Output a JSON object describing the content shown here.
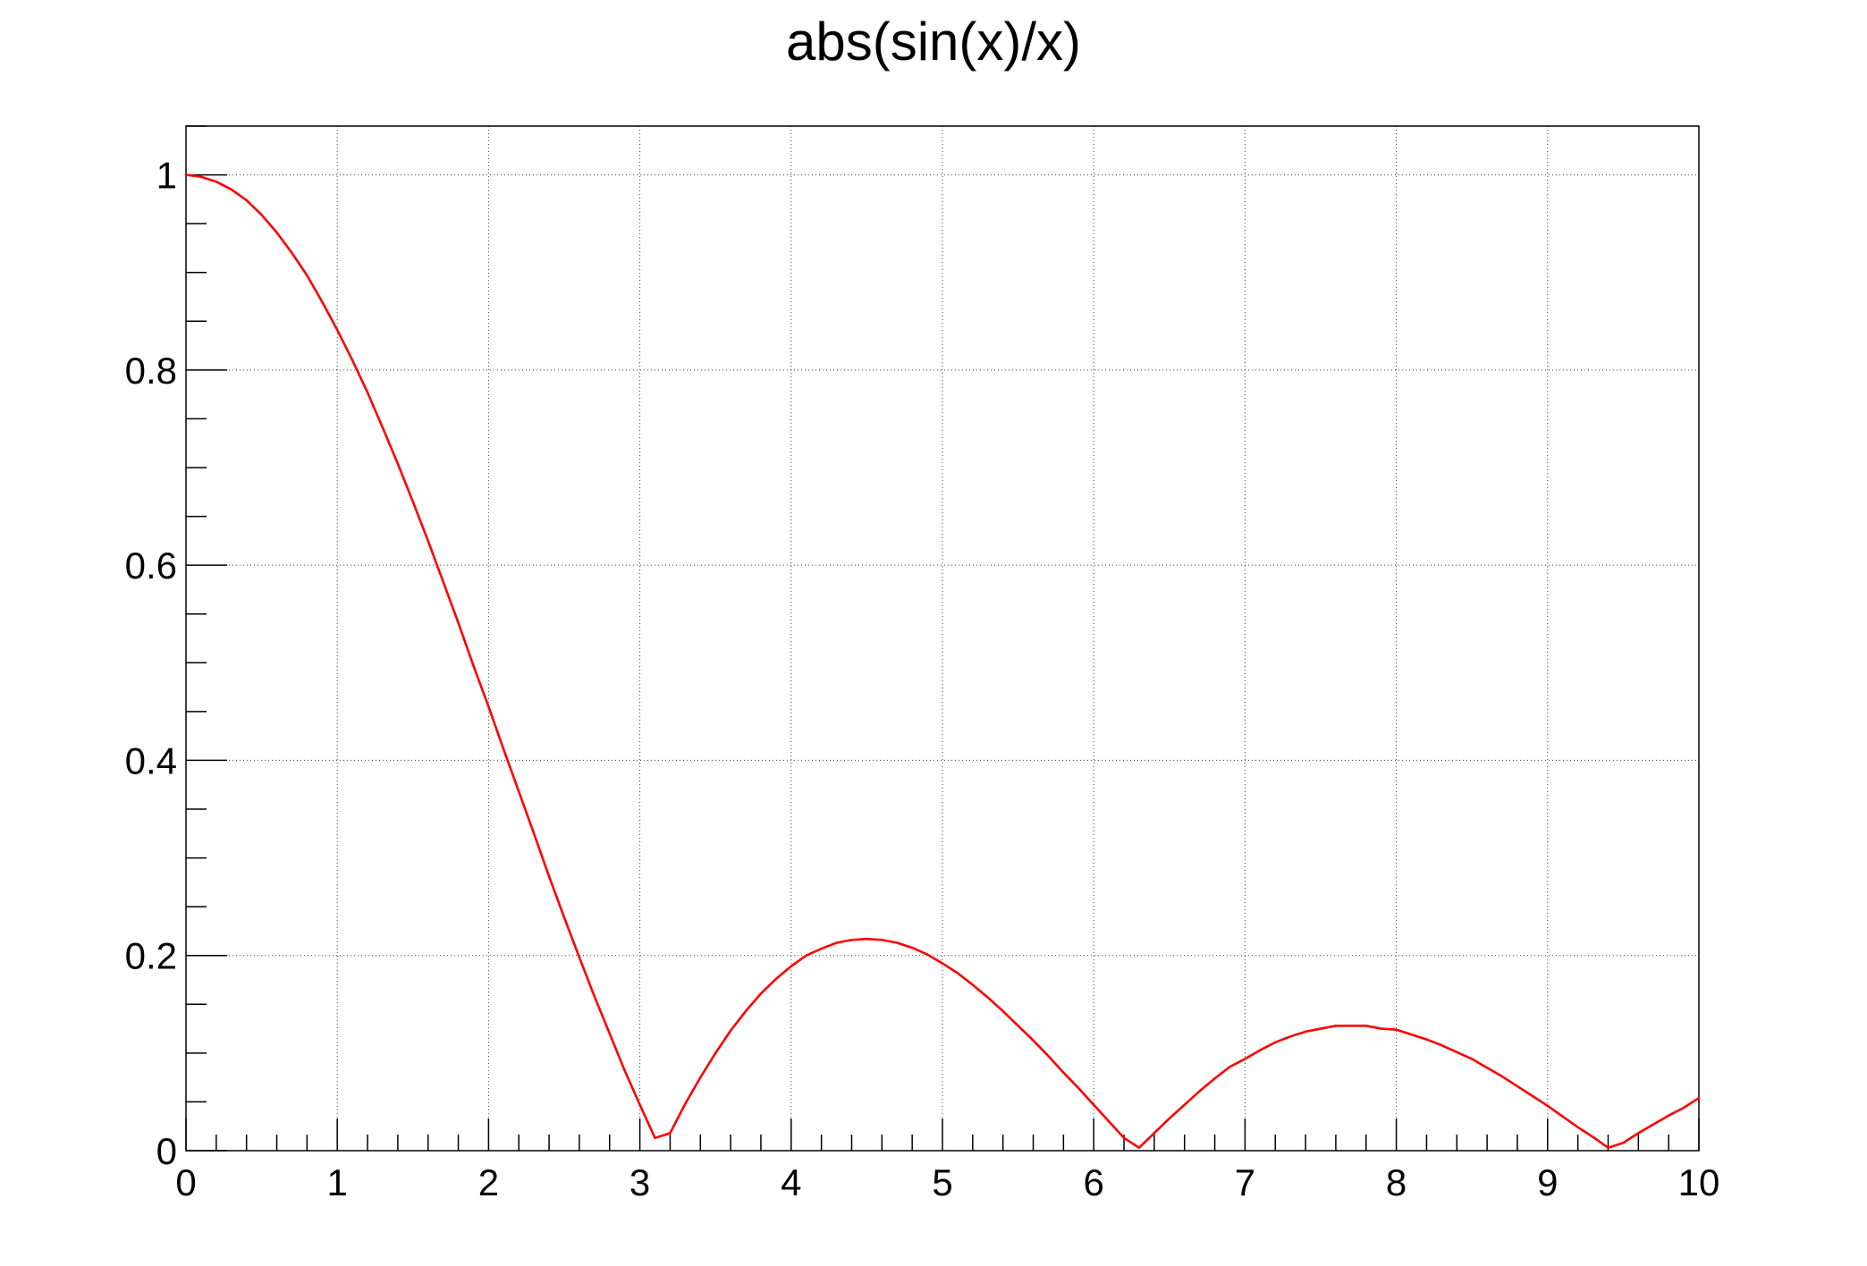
{
  "chart_data": {
    "type": "line",
    "title": "abs(sin(x)/x)",
    "xlabel": "",
    "ylabel": "",
    "xlim": [
      0,
      10
    ],
    "ylim": [
      0,
      1.05
    ],
    "grid": true,
    "x_ticks": [
      "0",
      "1",
      "2",
      "3",
      "4",
      "5",
      "6",
      "7",
      "8",
      "9",
      "10"
    ],
    "y_ticks": [
      "0",
      "0.2",
      "0.4",
      "0.6",
      "0.8",
      "1"
    ],
    "series": [
      {
        "color": "#ff0000",
        "x": [
          0,
          0.1,
          0.2,
          0.3,
          0.4,
          0.5,
          0.6,
          0.7,
          0.8,
          0.9,
          1.0,
          1.1,
          1.2,
          1.3,
          1.4,
          1.5,
          1.6,
          1.7,
          1.8,
          1.9,
          2.0,
          2.1,
          2.2,
          2.3,
          2.4,
          2.5,
          2.6,
          2.7,
          2.8,
          2.9,
          3.0,
          3.1,
          3.2,
          3.3,
          3.4,
          3.5,
          3.6,
          3.7,
          3.8,
          3.9,
          4.0,
          4.1,
          4.2,
          4.3,
          4.4,
          4.5,
          4.6,
          4.7,
          4.8,
          4.9,
          5.0,
          5.1,
          5.2,
          5.3,
          5.4,
          5.5,
          5.6,
          5.7,
          5.8,
          5.9,
          6.0,
          6.1,
          6.2,
          6.3,
          6.4,
          6.5,
          6.6,
          6.7,
          6.8,
          6.9,
          7.0,
          7.1,
          7.2,
          7.3,
          7.4,
          7.5,
          7.6,
          7.7,
          7.8,
          7.9,
          8.0,
          8.1,
          8.2,
          8.3,
          8.4,
          8.5,
          8.6,
          8.7,
          8.8,
          8.9,
          9.0,
          9.1,
          9.2,
          9.3,
          9.4,
          9.5,
          9.6,
          9.7,
          9.8,
          9.9,
          10.0
        ],
        "y": [
          1.0,
          0.998,
          0.993,
          0.985,
          0.974,
          0.959,
          0.941,
          0.92,
          0.897,
          0.87,
          0.841,
          0.81,
          0.777,
          0.741,
          0.704,
          0.665,
          0.625,
          0.583,
          0.541,
          0.497,
          0.455,
          0.411,
          0.368,
          0.325,
          0.281,
          0.239,
          0.198,
          0.158,
          0.12,
          0.082,
          0.047,
          0.013,
          0.018,
          0.048,
          0.075,
          0.1,
          0.123,
          0.143,
          0.161,
          0.176,
          0.189,
          0.2,
          0.207,
          0.213,
          0.216,
          0.217,
          0.216,
          0.213,
          0.208,
          0.201,
          0.192,
          0.182,
          0.17,
          0.157,
          0.143,
          0.128,
          0.113,
          0.097,
          0.08,
          0.064,
          0.047,
          0.03,
          0.013,
          0.003,
          0.018,
          0.033,
          0.047,
          0.061,
          0.074,
          0.086,
          0.094,
          0.103,
          0.111,
          0.117,
          0.122,
          0.125,
          0.128,
          0.128,
          0.128,
          0.125,
          0.124,
          0.119,
          0.114,
          0.108,
          0.101,
          0.094,
          0.085,
          0.076,
          0.066,
          0.056,
          0.046,
          0.035,
          0.024,
          0.014,
          0.003,
          0.008,
          0.018,
          0.027,
          0.036,
          0.044,
          0.054
        ]
      }
    ]
  }
}
